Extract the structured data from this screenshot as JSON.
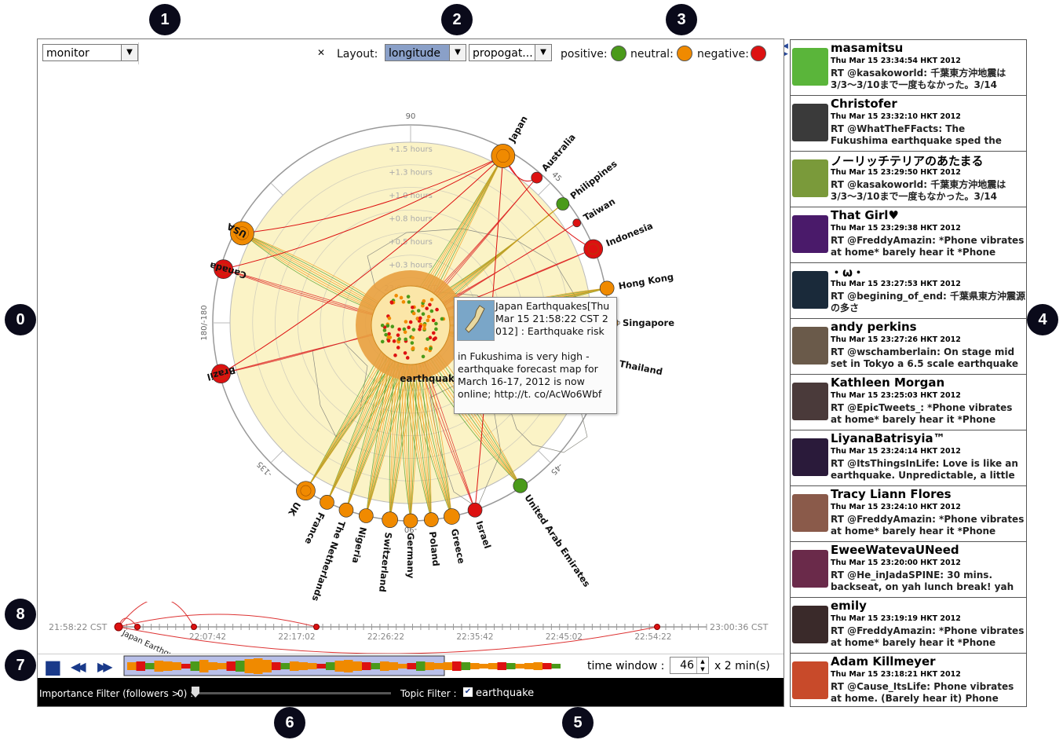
{
  "badges": [
    "0",
    "1",
    "2",
    "3",
    "4",
    "5",
    "6",
    "7",
    "8"
  ],
  "toolbar": {
    "mode": "monitor",
    "close_glyph": "✕",
    "layout_label": "Layout:",
    "layout_value": "longitude",
    "order_value": "propogat...",
    "positive_label": "positive:",
    "neutral_label": "neutral:",
    "negative_label": "negative:"
  },
  "colors": {
    "positive": "#4a9a1a",
    "neutral": "#f08a00",
    "negative": "#dd1111",
    "accent": "#8aa0c8",
    "map_fill": "#fbf3c6"
  },
  "radial": {
    "angle_labels": [
      "180/-180",
      "-135",
      "-90",
      "-45",
      "0",
      "45",
      "90"
    ],
    "ring_labels": [
      "+1.5 hours",
      "+1.3 hours",
      "+1.0 hours",
      "+0.8 hours",
      "+0.5 hours",
      "+0.3 hours",
      "23:00:36 CST"
    ],
    "center_label": "earthquake",
    "countries": [
      {
        "name": "Japan",
        "sentiment": "neutral",
        "size": 15
      },
      {
        "name": "Australia",
        "sentiment": "negative",
        "size": 7
      },
      {
        "name": "Philippines",
        "sentiment": "positive",
        "size": 8
      },
      {
        "name": "Taiwan",
        "sentiment": "negative",
        "size": 5
      },
      {
        "name": "Indonesia",
        "sentiment": "negative",
        "size": 12
      },
      {
        "name": "Hong Kong",
        "sentiment": "neutral",
        "size": 9
      },
      {
        "name": "Singapore",
        "sentiment": "neutral",
        "size": 8
      },
      {
        "name": "Thailand",
        "sentiment": "positive",
        "size": 7
      },
      {
        "name": "United Arab Emirates",
        "sentiment": "positive",
        "size": 9
      },
      {
        "name": "Israel",
        "sentiment": "negative",
        "size": 9
      },
      {
        "name": "Greece",
        "sentiment": "neutral",
        "size": 10
      },
      {
        "name": "Poland",
        "sentiment": "neutral",
        "size": 9
      },
      {
        "name": "Germany",
        "sentiment": "neutral",
        "size": 9
      },
      {
        "name": "Switzerland",
        "sentiment": "neutral",
        "size": 10
      },
      {
        "name": "Nigeria",
        "sentiment": "neutral",
        "size": 9
      },
      {
        "name": "The Netherlands",
        "sentiment": "neutral",
        "size": 9
      },
      {
        "name": "France",
        "sentiment": "neutral",
        "size": 9
      },
      {
        "name": "UK",
        "sentiment": "neutral",
        "size": 12
      },
      {
        "name": "Brazil",
        "sentiment": "negative",
        "size": 12
      },
      {
        "name": "Canada",
        "sentiment": "negative",
        "size": 12
      },
      {
        "name": "USA",
        "sentiment": "neutral",
        "size": 15
      }
    ]
  },
  "tooltip": {
    "title": "Japan Earthquakes[Thu Mar 15 21:58:22 CST 2012] : Earthquake risk",
    "body": "in Fukushima is very high - earthquake forecast map for March 16-17, 2012 is now online; http://t. co/AcWo6Wbf"
  },
  "timeline": {
    "start": "21:58:22 CST",
    "end": "23:00:36 CST",
    "ticks": [
      "22:07:42",
      "22:17:02",
      "22:26:22",
      "22:35:42",
      "22:45:02",
      "22:54:22"
    ],
    "event_label": "Japan Earthquakes"
  },
  "player": {
    "stop_glyph": "■",
    "rewind_glyph": "◀◀",
    "forward_glyph": "▶▶",
    "time_window_label": "time window :",
    "window_value": "46",
    "unit_label": "x 2 min(s)"
  },
  "filters": {
    "importance_label": "Importance Filter (followers >",
    "importance_value": "0) :",
    "slider_position": 0,
    "topic_label": "Topic Filter :",
    "topic_value": "earthquake",
    "topic_checked_glyph": "✔"
  },
  "tweets": [
    {
      "user": "masamitsu",
      "time": "Thu Mar 15 23:34:54 HKT 2012",
      "text": "RT @kasakoworld: 千葉東方沖地震は3/3〜3/10まで一度もなかった。3/14",
      "avatar": "#5ab53a"
    },
    {
      "user": "Christofer",
      "time": "Thu Mar 15 23:32:10 HKT 2012",
      "text": "RT @WhatTheFFacts: The Fukushima earthquake sped the Earth's rotation",
      "avatar": "#3a3a3a"
    },
    {
      "user": "ノーリッチテリアのあたまる",
      "time": "Thu Mar 15 23:29:50 HKT 2012",
      "text": "RT @kasakoworld: 千葉東方沖地震は3/3〜3/10まで一度もなかった。3/14",
      "avatar": "#7a9a3a"
    },
    {
      "user": "That Girl♥",
      "time": "Thu Mar 15 23:29:38 HKT 2012",
      "text": "RT @FreddyAmazin: *Phone vibrates at home* barely hear it *Phone vibrates",
      "avatar": "#4a1a6a"
    },
    {
      "user": "・ω・",
      "time": "Thu Mar 15 23:27:53 HKT 2012",
      "text": "RT @begining_of_end: 千葉県東方沖震源の多さ",
      "avatar": "#1a2a3a"
    },
    {
      "user": "andy perkins",
      "time": "Thu Mar 15 23:27:26 HKT 2012",
      "text": "RT @wschamberlain: On stage mid set in Tokyo a 6.5 scale earthquake",
      "avatar": "#6a5a4a"
    },
    {
      "user": "Kathleen Morgan",
      "time": "Thu Mar 15 23:25:03 HKT 2012",
      "text": "RT @EpicTweets_: *Phone vibrates at home* barely hear it *Phone vibrates",
      "avatar": "#4a3a3a"
    },
    {
      "user": "LiyanaBatrisyia™",
      "time": "Thu Mar 15 23:24:14 HKT 2012",
      "text": "RT @ItsThingsInLife: Love is like an earthquake. Unpredictable, a little",
      "avatar": "#2a1a3a"
    },
    {
      "user": "Tracy Liann Flores",
      "time": "Thu Mar 15 23:24:10 HKT 2012",
      "text": "RT @FreddyAmazin: *Phone vibrates at home* barely hear it *Phone vibrates",
      "avatar": "#8a5a4a"
    },
    {
      "user": "EweeWatevaUNeed",
      "time": "Thu Mar 15 23:20:00 HKT 2012",
      "text": "RT @He_inJadaSPINE: 30 mins. backseat, on yah lunch break! yah",
      "avatar": "#6a2a4a"
    },
    {
      "user": "emily",
      "time": "Thu Mar 15 23:19:19 HKT 2012",
      "text": "RT @FreddyAmazin: *Phone vibrates at home* barely hear it *Phone",
      "avatar": "#3a2a2a"
    },
    {
      "user": "Adam Killmeyer",
      "time": "Thu Mar 15 23:18:21 HKT 2012",
      "text": "RT @Cause_ItsLife: Phone vibrates at home. (Barely hear it) Phone vibrates",
      "avatar": "#c84a2a"
    }
  ]
}
